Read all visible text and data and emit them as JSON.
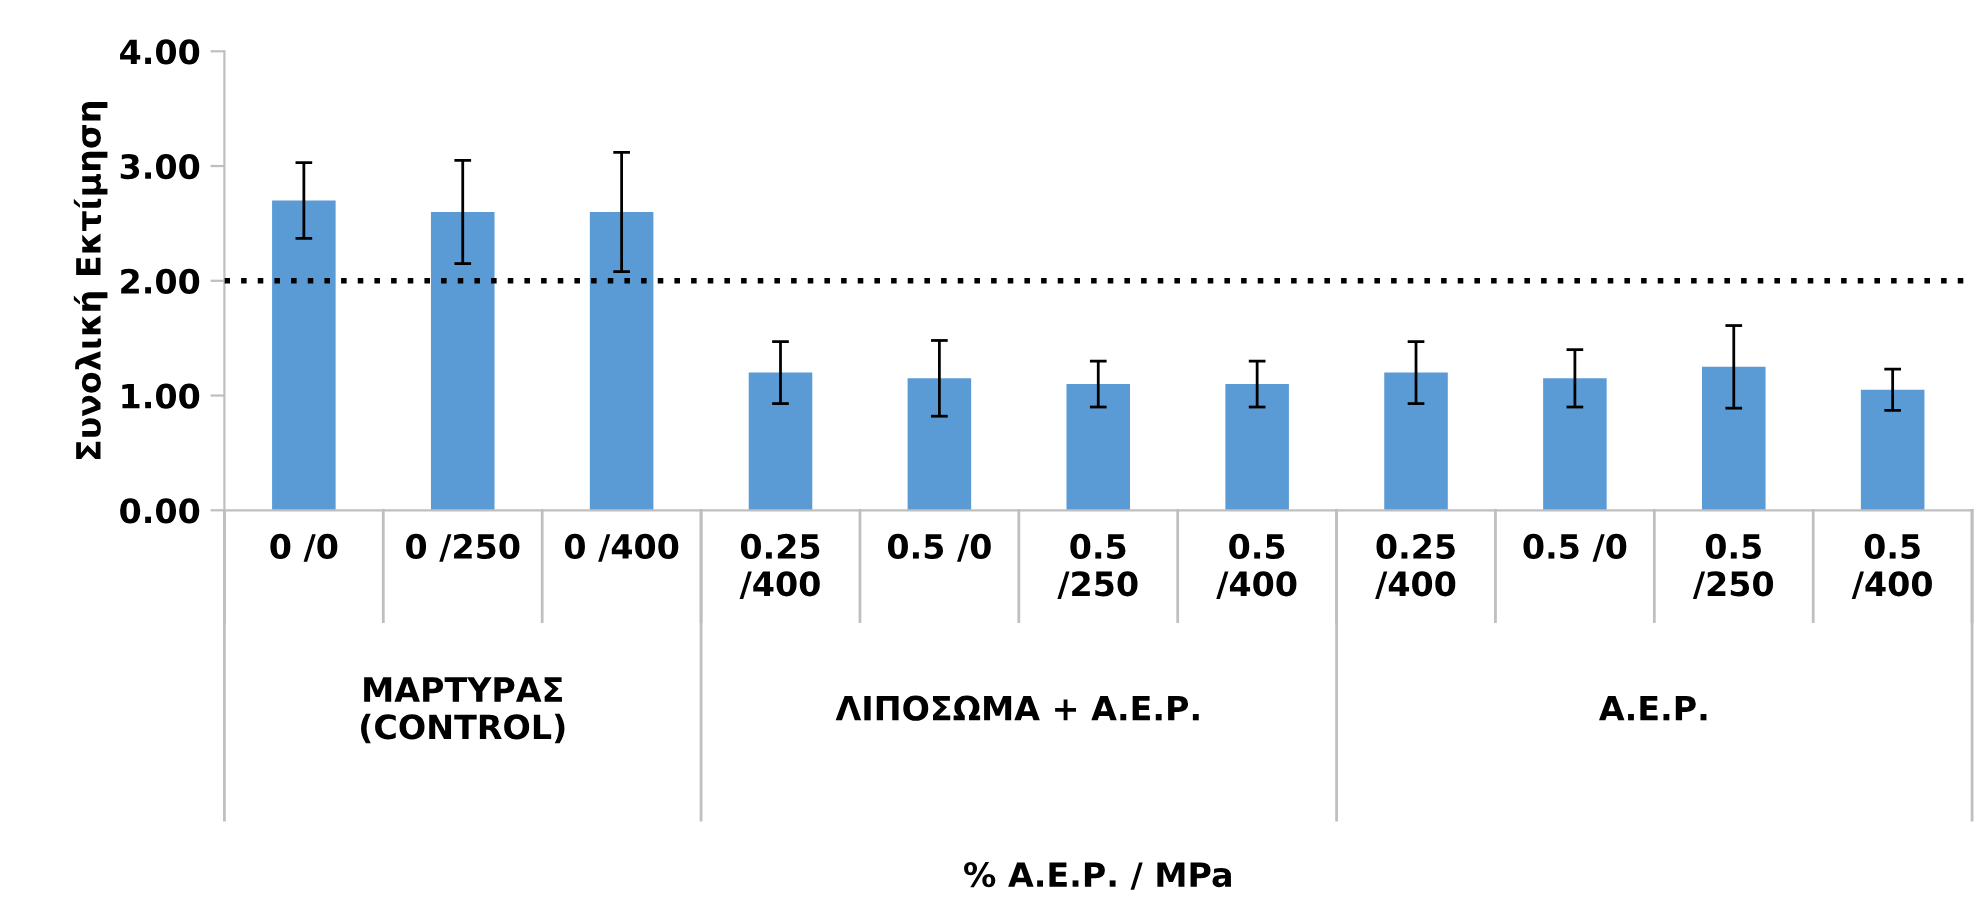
{
  "chart_data": {
    "type": "bar",
    "ylabel": "Συνολική Εκτίμηση",
    "categories": [
      "0 /0",
      "0 /250",
      "0 /400",
      "0.25\n/400",
      "0.5 /0",
      "0.5\n/250",
      "0.5\n/400",
      "0.25\n/400",
      "0.5 /0",
      "0.5\n/250",
      "0.5\n/400"
    ],
    "values": [
      2.7,
      2.6,
      2.6,
      1.2,
      1.15,
      1.1,
      1.1,
      1.2,
      1.15,
      1.25,
      1.05
    ],
    "errors": [
      0.33,
      0.45,
      0.52,
      0.27,
      0.33,
      0.2,
      0.2,
      0.27,
      0.25,
      0.36,
      0.18
    ],
    "color": "#5b9bd5",
    "ylim": [
      0,
      4
    ],
    "yticks": [
      {
        "value": 0,
        "label": "0.00"
      },
      {
        "value": 1,
        "label": "1.00"
      },
      {
        "value": 2,
        "label": "2.00"
      },
      {
        "value": 3,
        "label": "3.00"
      },
      {
        "value": 4,
        "label": "4.00"
      }
    ],
    "ref_lines": [
      {
        "axis": "y",
        "value": 2,
        "label": null,
        "color": "#000000",
        "line_style": "dotted"
      }
    ],
    "annotations": [
      "ΜΑΡΤΥΡΑΣ\n(CONTROL)",
      "ΛΙΠΟΣΩΜΑ + Α.Ε.Ρ.",
      "Α.Ε.Ρ.",
      "% Α.Ε.Ρ. / MPa"
    ],
    "grid": false,
    "legend": false
  }
}
